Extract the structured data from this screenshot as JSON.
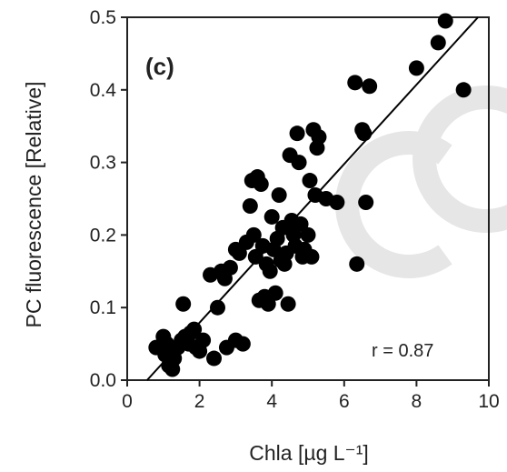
{
  "chart_data": {
    "type": "scatter",
    "panel_label": "(c)",
    "annotation": "r = 0.87",
    "xlabel": "Chla [µg L⁻¹]",
    "ylabel": "PC fluorescence [Relative]",
    "xlim": [
      0,
      10
    ],
    "ylim": [
      0,
      0.5
    ],
    "xticks": [
      0,
      2,
      4,
      6,
      8,
      10
    ],
    "yticks": [
      0.0,
      0.1,
      0.2,
      0.3,
      0.4,
      0.5
    ],
    "xtick_labels": [
      "0",
      "2",
      "4",
      "6",
      "8",
      "10"
    ],
    "ytick_labels": [
      "0.0",
      "0.1",
      "0.2",
      "0.3",
      "0.4",
      "0.5"
    ],
    "grid": false,
    "point_color": "#000000",
    "fit_line": {
      "x": [
        0.55,
        9.7
      ],
      "y": [
        0.0,
        0.5
      ]
    },
    "points": [
      {
        "x": 0.8,
        "y": 0.045
      },
      {
        "x": 1.0,
        "y": 0.06
      },
      {
        "x": 1.05,
        "y": 0.035
      },
      {
        "x": 1.1,
        "y": 0.05
      },
      {
        "x": 1.15,
        "y": 0.02
      },
      {
        "x": 1.2,
        "y": 0.04
      },
      {
        "x": 1.25,
        "y": 0.015
      },
      {
        "x": 1.3,
        "y": 0.03
      },
      {
        "x": 1.4,
        "y": 0.045
      },
      {
        "x": 1.5,
        "y": 0.055
      },
      {
        "x": 1.55,
        "y": 0.105
      },
      {
        "x": 1.6,
        "y": 0.06
      },
      {
        "x": 1.7,
        "y": 0.05
      },
      {
        "x": 1.75,
        "y": 0.065
      },
      {
        "x": 1.85,
        "y": 0.07
      },
      {
        "x": 1.9,
        "y": 0.045
      },
      {
        "x": 2.0,
        "y": 0.04
      },
      {
        "x": 2.1,
        "y": 0.055
      },
      {
        "x": 2.3,
        "y": 0.145
      },
      {
        "x": 2.4,
        "y": 0.03
      },
      {
        "x": 2.5,
        "y": 0.1
      },
      {
        "x": 2.6,
        "y": 0.15
      },
      {
        "x": 2.7,
        "y": 0.14
      },
      {
        "x": 2.75,
        "y": 0.045
      },
      {
        "x": 2.85,
        "y": 0.155
      },
      {
        "x": 3.0,
        "y": 0.055
      },
      {
        "x": 3.0,
        "y": 0.18
      },
      {
        "x": 3.1,
        "y": 0.175
      },
      {
        "x": 3.2,
        "y": 0.05
      },
      {
        "x": 3.3,
        "y": 0.19
      },
      {
        "x": 3.4,
        "y": 0.24
      },
      {
        "x": 3.45,
        "y": 0.275
      },
      {
        "x": 3.5,
        "y": 0.2
      },
      {
        "x": 3.55,
        "y": 0.17
      },
      {
        "x": 3.6,
        "y": 0.28
      },
      {
        "x": 3.65,
        "y": 0.11
      },
      {
        "x": 3.7,
        "y": 0.27
      },
      {
        "x": 3.75,
        "y": 0.185
      },
      {
        "x": 3.8,
        "y": 0.115
      },
      {
        "x": 3.85,
        "y": 0.16
      },
      {
        "x": 3.9,
        "y": 0.105
      },
      {
        "x": 3.95,
        "y": 0.15
      },
      {
        "x": 4.0,
        "y": 0.225
      },
      {
        "x": 4.05,
        "y": 0.18
      },
      {
        "x": 4.1,
        "y": 0.12
      },
      {
        "x": 4.15,
        "y": 0.195
      },
      {
        "x": 4.2,
        "y": 0.255
      },
      {
        "x": 4.25,
        "y": 0.165
      },
      {
        "x": 4.3,
        "y": 0.21
      },
      {
        "x": 4.35,
        "y": 0.16
      },
      {
        "x": 4.4,
        "y": 0.175
      },
      {
        "x": 4.45,
        "y": 0.105
      },
      {
        "x": 4.5,
        "y": 0.31
      },
      {
        "x": 4.55,
        "y": 0.22
      },
      {
        "x": 4.6,
        "y": 0.2
      },
      {
        "x": 4.65,
        "y": 0.185
      },
      {
        "x": 4.7,
        "y": 0.34
      },
      {
        "x": 4.75,
        "y": 0.3
      },
      {
        "x": 4.8,
        "y": 0.215
      },
      {
        "x": 4.85,
        "y": 0.17
      },
      {
        "x": 4.9,
        "y": 0.18
      },
      {
        "x": 5.0,
        "y": 0.2
      },
      {
        "x": 5.05,
        "y": 0.275
      },
      {
        "x": 5.1,
        "y": 0.17
      },
      {
        "x": 5.15,
        "y": 0.345
      },
      {
        "x": 5.2,
        "y": 0.255
      },
      {
        "x": 5.25,
        "y": 0.32
      },
      {
        "x": 5.3,
        "y": 0.335
      },
      {
        "x": 5.5,
        "y": 0.25
      },
      {
        "x": 5.8,
        "y": 0.245
      },
      {
        "x": 6.3,
        "y": 0.41
      },
      {
        "x": 6.35,
        "y": 0.16
      },
      {
        "x": 6.5,
        "y": 0.345
      },
      {
        "x": 6.55,
        "y": 0.34
      },
      {
        "x": 6.6,
        "y": 0.245
      },
      {
        "x": 6.7,
        "y": 0.405
      },
      {
        "x": 8.0,
        "y": 0.43
      },
      {
        "x": 8.6,
        "y": 0.465
      },
      {
        "x": 8.8,
        "y": 0.495
      },
      {
        "x": 9.3,
        "y": 0.4
      }
    ]
  }
}
